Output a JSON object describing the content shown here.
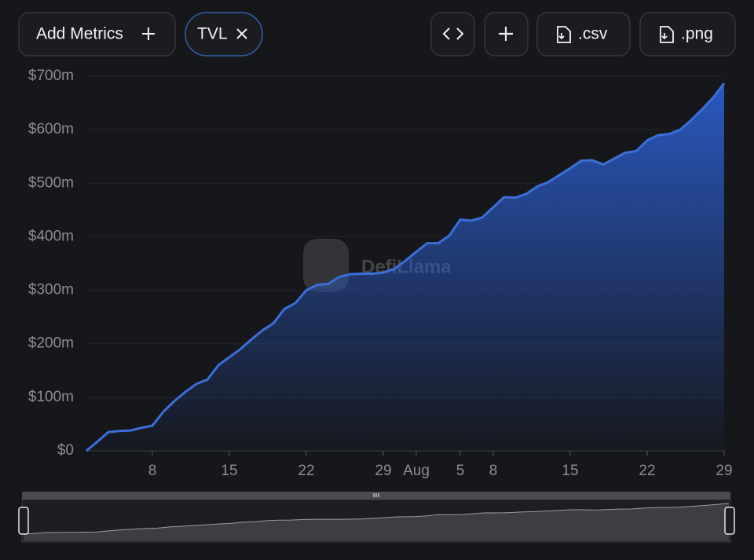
{
  "toolbar": {
    "add_metrics": "Add Metrics",
    "metric": "TVL",
    "csv": ".csv",
    "png": ".png"
  },
  "watermark": "DefiLlama",
  "chart_data": {
    "type": "area",
    "x": [
      0,
      1,
      2,
      3,
      4,
      5,
      6,
      7,
      8,
      9,
      10,
      11,
      12,
      13,
      14,
      15,
      16,
      17,
      18,
      19,
      20,
      21,
      22,
      23,
      24,
      25,
      26,
      27,
      28,
      29,
      30,
      31,
      32,
      33,
      34,
      35,
      36,
      37,
      38,
      39,
      40,
      41,
      42,
      43,
      44,
      45,
      46,
      47,
      48,
      49,
      50,
      51,
      52,
      53,
      54,
      55,
      56,
      57,
      58
    ],
    "series": [
      {
        "name": "TVL",
        "color": "#3b6fd8",
        "values": [
          0,
          17,
          35,
          37,
          38,
          43,
          47,
          73,
          93,
          110,
          125,
          133,
          160,
          175,
          190,
          208,
          225,
          238,
          265,
          276,
          300,
          310,
          312,
          325,
          330,
          331,
          331,
          333,
          340,
          355,
          372,
          388,
          388,
          402,
          432,
          430,
          436,
          455,
          474,
          473,
          480,
          494,
          502,
          515,
          528,
          542,
          543,
          535,
          546,
          557,
          560,
          580,
          590,
          592,
          600,
          618,
          638,
          660,
          687
        ]
      }
    ],
    "xlim": [
      0,
      58
    ],
    "xticks": [
      {
        "value": 6,
        "label": "8"
      },
      {
        "value": 13,
        "label": "15"
      },
      {
        "value": 20,
        "label": "22"
      },
      {
        "value": 27,
        "label": "29"
      },
      {
        "value": 30,
        "label": "Aug"
      },
      {
        "value": 34,
        "label": "5"
      },
      {
        "value": 37,
        "label": "8"
      },
      {
        "value": 44,
        "label": "15"
      },
      {
        "value": 51,
        "label": "22"
      },
      {
        "value": 58,
        "label": "29"
      }
    ],
    "ylim": [
      0,
      700
    ],
    "yticks": [
      {
        "value": 0,
        "label": "$0"
      },
      {
        "value": 100,
        "label": "$100m"
      },
      {
        "value": 200,
        "label": "$200m"
      },
      {
        "value": 300,
        "label": "$300m"
      },
      {
        "value": 400,
        "label": "$400m"
      },
      {
        "value": 500,
        "label": "$500m"
      },
      {
        "value": 600,
        "label": "$600m"
      },
      {
        "value": 700,
        "label": "$700m"
      }
    ],
    "grid": true
  }
}
